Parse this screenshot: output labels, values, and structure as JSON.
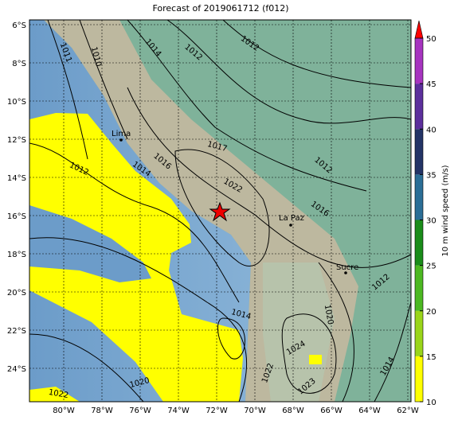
{
  "title": "Forecast of 2019061712 (f012)",
  "lat_ticks": [
    "6°S",
    "8°S",
    "10°S",
    "12°S",
    "14°S",
    "16°S",
    "18°S",
    "20°S",
    "22°S",
    "24°S"
  ],
  "lon_ticks": [
    "80°W",
    "78°W",
    "76°W",
    "74°W",
    "72°W",
    "70°W",
    "68°W",
    "66°W",
    "64°W",
    "62°W"
  ],
  "cities": [
    "Lima",
    "La Paz",
    "Sucre"
  ],
  "contour_labels": [
    "1011",
    "1010",
    "1014",
    "1012",
    "1012",
    "1012",
    "1014",
    "1016",
    "1017",
    "1022",
    "1012",
    "1016",
    "1012",
    "1020",
    "1014",
    "1024",
    "1022",
    "1023",
    "1014",
    "1020",
    "1022"
  ],
  "colorbar": {
    "label": "10 m wind speed (m/s)",
    "lim": [
      10,
      50
    ],
    "ticks": [
      10,
      15,
      20,
      25,
      30,
      35,
      40,
      45,
      50
    ],
    "colors": [
      "#ffff00",
      "#9ad51a",
      "#4cb822",
      "#1a8c1a",
      "#2b6e96",
      "#233466",
      "#5c2f9c",
      "#a634bf"
    ],
    "extend_color": "#ff0000"
  }
}
